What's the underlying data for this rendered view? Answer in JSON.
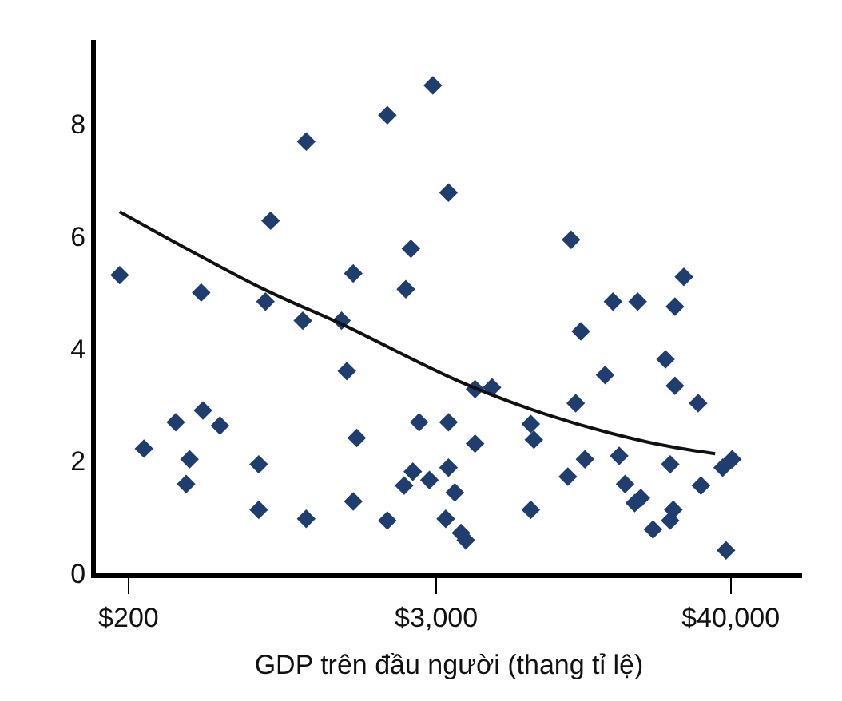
{
  "chart_data": {
    "type": "scatter",
    "xlabel": "GDP trên đầu người (thang tỉ lệ)",
    "log": "x",
    "xlim": [
      150,
      75000
    ],
    "ylim": [
      0,
      9.5
    ],
    "xticks": [
      {
        "value": 200,
        "label": "$200"
      },
      {
        "value": 3000,
        "label": "$3,000"
      },
      {
        "value": 40000,
        "label": "$40,000"
      }
    ],
    "yticks": [
      0,
      2,
      4,
      6,
      8
    ],
    "marker": "diamond",
    "series": [
      {
        "color": "#1f3d6e",
        "x": [
          2910,
          1950,
          955,
          3340,
          698,
          185,
          2400,
          1445,
          2295,
          379,
          667,
          927,
          1303,
          1365,
          385,
          303,
          447,
          2580,
          3340,
          1490,
          229,
          342,
          629,
          332,
          2440,
          2260,
          2825,
          3340,
          629,
          1445,
          955,
          1950,
          3260,
          9820,
          26500,
          14200,
          17650,
          24500,
          10700,
          22550,
          13250,
          24500,
          30050,
          10230,
          4220,
          4900,
          6890,
          7080,
          4220,
          3530,
          3730,
          3890,
          6890,
          9550,
          11100,
          15000,
          23500,
          30800,
          15800,
          17200,
          18150,
          24150,
          23500,
          20200,
          37300,
          40550,
          38400
        ],
        "values": [
          8.69,
          8.16,
          7.69,
          6.78,
          6.28,
          5.31,
          5.78,
          5.34,
          5.06,
          5.0,
          4.84,
          4.5,
          4.5,
          3.6,
          2.9,
          2.69,
          2.63,
          2.69,
          2.69,
          2.41,
          2.22,
          2.03,
          1.94,
          1.59,
          1.81,
          1.56,
          1.66,
          1.88,
          1.13,
          1.28,
          0.97,
          0.94,
          0.97,
          5.94,
          5.28,
          4.84,
          4.84,
          4.75,
          4.31,
          3.81,
          3.53,
          3.34,
          3.03,
          3.03,
          3.28,
          3.31,
          2.66,
          2.38,
          2.31,
          1.44,
          0.72,
          0.59,
          1.13,
          1.72,
          2.03,
          2.09,
          1.94,
          1.56,
          1.59,
          1.25,
          1.34,
          1.13,
          0.94,
          0.78,
          1.88,
          2.03,
          0.41
        ]
      },
      {
        "type": "line",
        "color": "#111111",
        "marker": "none",
        "line_style": "solid",
        "x": [
          185,
          638,
          1343,
          3580,
          7780,
          19150,
          34900
        ],
        "values": [
          6.44,
          5.09,
          4.41,
          3.44,
          2.84,
          2.34,
          2.13
        ]
      }
    ]
  }
}
